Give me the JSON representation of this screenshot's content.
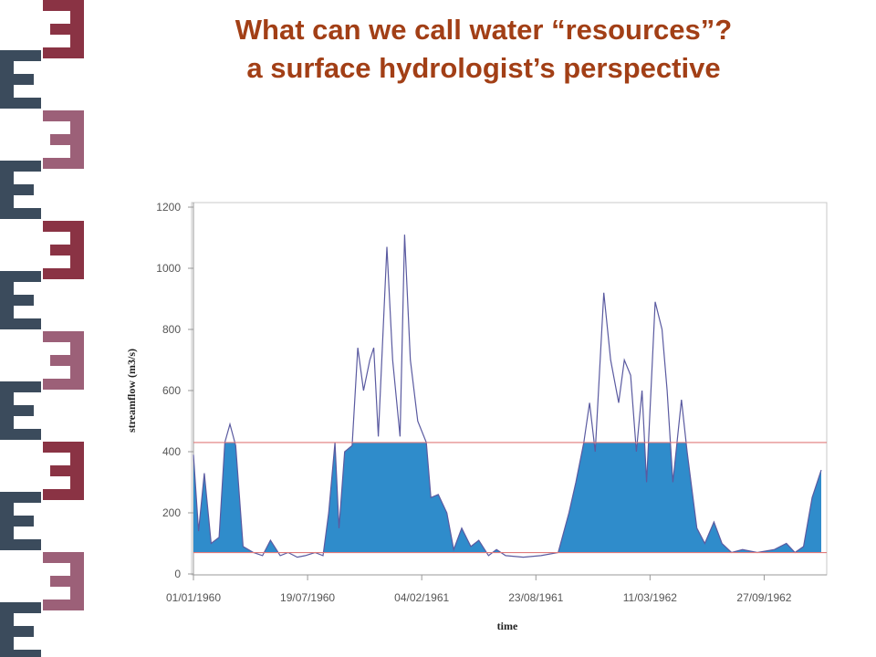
{
  "title": [
    "What can we call water “resources”?",
    "a surface hydrologist’s perspective"
  ],
  "chart_data": {
    "type": "line",
    "xlabel": "time",
    "ylabel": "streamflow (m3/s)",
    "x": [
      "01/01/1960",
      "10/01/1960",
      "20/01/1960",
      "01/02/1960",
      "15/02/1960",
      "25/02/1960",
      "05/03/1960",
      "15/03/1960",
      "28/03/1960",
      "15/04/1960",
      "01/05/1960",
      "15/05/1960",
      "01/06/1960",
      "15/06/1960",
      "01/07/1960",
      "15/07/1960",
      "01/08/1960",
      "15/08/1960",
      "25/08/1960",
      "05/09/1960",
      "12/09/1960",
      "22/09/1960",
      "05/10/1960",
      "15/10/1960",
      "25/10/1960",
      "05/11/1960",
      "12/11/1960",
      "20/11/1960",
      "05/12/1960",
      "15/12/1960",
      "28/12/1960",
      "05/01/1961",
      "15/01/1961",
      "28/01/1961",
      "12/02/1961",
      "20/02/1961",
      "05/03/1961",
      "20/03/1961",
      "01/04/1961",
      "15/04/1961",
      "01/05/1961",
      "15/05/1961",
      "01/06/1961",
      "15/06/1961",
      "01/07/1961",
      "01/08/1961",
      "01/09/1961",
      "01/10/1961",
      "20/10/1961",
      "01/11/1961",
      "15/11/1961",
      "25/11/1961",
      "05/12/1961",
      "20/12/1961",
      "01/01/1962",
      "15/01/1962",
      "25/01/1962",
      "05/02/1962",
      "15/02/1962",
      "25/02/1962",
      "05/03/1962",
      "20/03/1962",
      "01/04/1962",
      "10/04/1962",
      "20/04/1962",
      "05/05/1962",
      "15/05/1962",
      "01/06/1962",
      "15/06/1962",
      "01/07/1962",
      "15/07/1962",
      "01/08/1962",
      "20/08/1962",
      "15/09/1962",
      "15/10/1962",
      "05/11/1962",
      "20/11/1962",
      "05/12/1962",
      "20/12/1962",
      "05/01/1963"
    ],
    "series": [
      {
        "color": "#5a5aa0",
        "fill": "#2f8ccb",
        "values": [
          390,
          140,
          330,
          100,
          120,
          430,
          490,
          420,
          90,
          70,
          60,
          110,
          60,
          70,
          55,
          60,
          70,
          60,
          200,
          430,
          150,
          400,
          420,
          740,
          600,
          700,
          740,
          450,
          1070,
          700,
          450,
          1110,
          700,
          500,
          430,
          250,
          260,
          200,
          80,
          150,
          90,
          110,
          60,
          80,
          60,
          55,
          60,
          70,
          200,
          300,
          430,
          560,
          400,
          920,
          700,
          560,
          700,
          650,
          400,
          600,
          300,
          890,
          800,
          600,
          300,
          570,
          400,
          150,
          100,
          170,
          100,
          70,
          80,
          70,
          80,
          100,
          70,
          90,
          250,
          340
        ]
      }
    ],
    "thresholds": [
      70,
      430
    ],
    "threshold_color": "#e07a7a",
    "xlim": [
      "01/01/1960",
      "05/01/1963"
    ],
    "xticks": [
      "01/01/1960",
      "19/07/1960",
      "04/02/1961",
      "23/08/1961",
      "11/03/1962",
      "27/09/1962"
    ],
    "ylim": [
      0,
      1200
    ],
    "yticks": [
      0,
      200,
      400,
      600,
      800,
      1000,
      1200
    ],
    "grid": false
  }
}
